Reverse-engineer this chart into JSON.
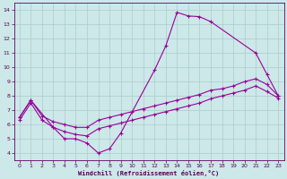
{
  "xlabel": "Windchill (Refroidissement éolien,°C)",
  "xlim": [
    -0.5,
    23.5
  ],
  "ylim": [
    3.5,
    14.5
  ],
  "xticks": [
    0,
    1,
    2,
    3,
    4,
    5,
    6,
    7,
    8,
    9,
    10,
    11,
    12,
    13,
    14,
    15,
    16,
    17,
    18,
    19,
    20,
    21,
    22,
    23
  ],
  "yticks": [
    4,
    5,
    6,
    7,
    8,
    9,
    10,
    11,
    12,
    13,
    14
  ],
  "bg_color": "#cce8e8",
  "grid_color": "#aacccc",
  "line_color": "#990099",
  "curve1_x": [
    0,
    1,
    3,
    4,
    5,
    6,
    7,
    8,
    9,
    12,
    13,
    14,
    15,
    16,
    17,
    21,
    22,
    23
  ],
  "curve1_y": [
    6.5,
    7.7,
    5.8,
    5.0,
    5.0,
    4.7,
    4.0,
    4.3,
    5.4,
    9.8,
    11.5,
    13.85,
    13.6,
    13.55,
    13.2,
    11.0,
    9.5,
    8.0
  ],
  "curve2_x": [
    0,
    1,
    2,
    3,
    4,
    5,
    6,
    7,
    8,
    9,
    10,
    11,
    12,
    13,
    14,
    15,
    16,
    17,
    18,
    19,
    20,
    21,
    22,
    23
  ],
  "curve2_y": [
    6.5,
    7.7,
    6.6,
    6.2,
    6.0,
    5.8,
    5.8,
    6.3,
    6.5,
    6.7,
    6.9,
    7.1,
    7.3,
    7.5,
    7.7,
    7.9,
    8.1,
    8.4,
    8.5,
    8.7,
    9.0,
    9.2,
    8.8,
    8.0
  ],
  "curve3_x": [
    0,
    1,
    2,
    3,
    4,
    5,
    6,
    7,
    8,
    9,
    10,
    11,
    12,
    13,
    14,
    15,
    16,
    17,
    18,
    19,
    20,
    21,
    22,
    23
  ],
  "curve3_y": [
    6.3,
    7.5,
    6.3,
    5.8,
    5.5,
    5.3,
    5.2,
    5.7,
    5.9,
    6.1,
    6.3,
    6.5,
    6.7,
    6.9,
    7.1,
    7.3,
    7.5,
    7.8,
    8.0,
    8.2,
    8.4,
    8.7,
    8.3,
    7.85
  ]
}
